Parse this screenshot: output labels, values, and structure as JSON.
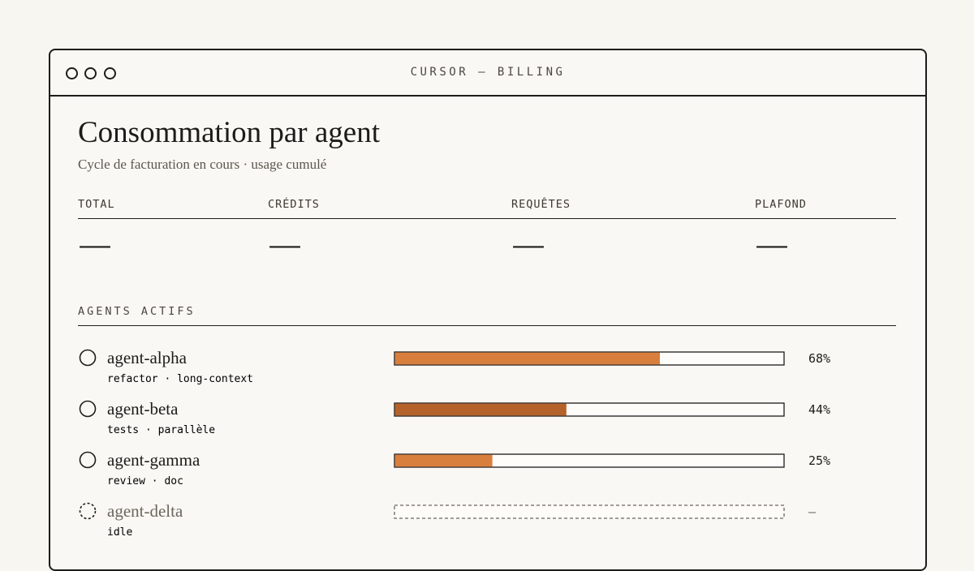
{
  "window": {
    "title": "CURSOR — BILLING"
  },
  "header": {
    "title": "Consommation par agent",
    "subtitle": "Cycle de facturation en cours · usage cumulé"
  },
  "stats": [
    {
      "label": "TOTAL",
      "value": "—"
    },
    {
      "label": "CRÉDITS",
      "value": "—"
    },
    {
      "label": "REQUÊTES",
      "value": "—"
    },
    {
      "label": "PLAFOND",
      "value": "—"
    }
  ],
  "section": {
    "title": "AGENTS ACTIFS"
  },
  "agents": [
    {
      "name": "agent-alpha",
      "tags": "refactor · long-context",
      "usage": 68,
      "usage_label": "68%",
      "color": "#d97f3e",
      "active": true
    },
    {
      "name": "agent-beta",
      "tags": "tests · parallèle",
      "usage": 44,
      "usage_label": "44%",
      "color": "#b5622a",
      "active": true
    },
    {
      "name": "agent-gamma",
      "tags": "review · doc",
      "usage": 25,
      "usage_label": "25%",
      "color": "#d97f3e",
      "active": true
    },
    {
      "name": "agent-delta",
      "tags": "idle",
      "usage": null,
      "usage_label": "—",
      "color": "#d97f3e",
      "active": false
    }
  ]
}
